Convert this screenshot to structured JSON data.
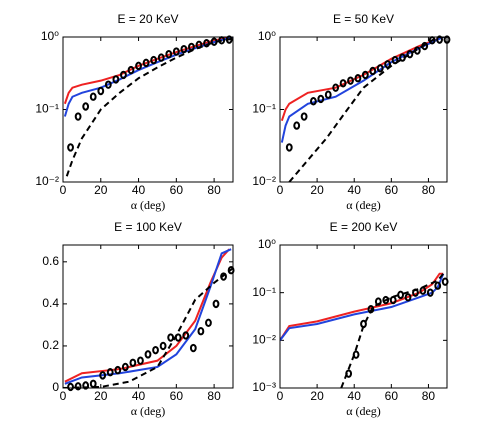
{
  "chart_data": [
    {
      "type": "line",
      "title": "E = 20 KeV",
      "xlabel": "α (deg)",
      "log_y": true,
      "xlim": [
        0,
        90
      ],
      "xticks": [
        0,
        20,
        40,
        60,
        80
      ],
      "ylim": [
        0.01,
        1
      ],
      "yticks": [
        {
          "value": 0.01,
          "label": "10⁻²"
        },
        {
          "value": 0.1,
          "label": "10⁻¹"
        },
        {
          "value": 1,
          "label": "10⁰"
        }
      ],
      "series": [
        {
          "color": "#ee2222",
          "line_style": "solid",
          "x": [
            1,
            3,
            5,
            10,
            20,
            30,
            40,
            50,
            60,
            70,
            80,
            90
          ],
          "values": [
            0.12,
            0.17,
            0.2,
            0.22,
            0.25,
            0.3,
            0.4,
            0.5,
            0.62,
            0.75,
            0.9,
            1
          ]
        },
        {
          "color": "#2244dd",
          "line_style": "solid",
          "x": [
            1,
            3,
            5,
            10,
            20,
            30,
            40,
            50,
            60,
            70,
            80,
            90
          ],
          "values": [
            0.08,
            0.12,
            0.15,
            0.17,
            0.2,
            0.26,
            0.35,
            0.45,
            0.57,
            0.7,
            0.85,
            1
          ]
        },
        {
          "color": "#000000",
          "line_style": "dashed",
          "x": [
            2,
            5,
            10,
            20,
            30,
            40,
            50,
            60,
            70,
            80,
            90
          ],
          "values": [
            0.012,
            0.02,
            0.04,
            0.1,
            0.17,
            0.27,
            0.38,
            0.52,
            0.68,
            0.85,
            0.95
          ]
        },
        {
          "color": "#000000",
          "line_style": "none",
          "marker": "circle",
          "x": [
            4,
            8,
            12,
            16,
            20,
            24,
            28,
            32,
            36,
            40,
            44,
            48,
            52,
            56,
            60,
            64,
            68,
            72,
            76,
            80,
            84,
            88
          ],
          "values": [
            0.03,
            0.08,
            0.11,
            0.15,
            0.18,
            0.22,
            0.26,
            0.3,
            0.35,
            0.4,
            0.44,
            0.48,
            0.52,
            0.58,
            0.63,
            0.68,
            0.73,
            0.78,
            0.82,
            0.86,
            0.9,
            0.92
          ]
        }
      ]
    },
    {
      "type": "line",
      "title": "E = 50 KeV",
      "xlabel": "α (deg)",
      "log_y": true,
      "xlim": [
        0,
        90
      ],
      "xticks": [
        0,
        20,
        40,
        60,
        80
      ],
      "ylim": [
        0.01,
        1
      ],
      "yticks": [
        {
          "value": 0.01,
          "label": "10⁻²"
        },
        {
          "value": 0.1,
          "label": "10⁻¹"
        },
        {
          "value": 1,
          "label": "10⁰"
        }
      ],
      "series": [
        {
          "color": "#ee2222",
          "line_style": "solid",
          "x": [
            1,
            3,
            5,
            15,
            30,
            45,
            60,
            75,
            88,
            90
          ],
          "values": [
            0.07,
            0.1,
            0.12,
            0.17,
            0.2,
            0.3,
            0.5,
            0.75,
            1,
            1
          ]
        },
        {
          "color": "#2244dd",
          "line_style": "solid",
          "x": [
            1,
            3,
            5,
            15,
            30,
            45,
            60,
            75,
            88,
            90
          ],
          "values": [
            0.035,
            0.06,
            0.08,
            0.12,
            0.15,
            0.25,
            0.45,
            0.7,
            1,
            1
          ]
        },
        {
          "color": "#000000",
          "line_style": "dashed",
          "x": [
            5,
            15,
            25,
            35,
            45,
            60,
            75,
            85,
            90
          ],
          "values": [
            0.01,
            0.02,
            0.04,
            0.09,
            0.2,
            0.4,
            0.7,
            1,
            1
          ]
        },
        {
          "color": "#000000",
          "line_style": "none",
          "marker": "circle",
          "x": [
            5,
            9,
            13,
            18,
            22,
            26,
            30,
            34,
            38,
            42,
            46,
            50,
            54,
            58,
            62,
            66,
            70,
            74,
            78,
            82,
            86,
            90
          ],
          "values": [
            0.03,
            0.06,
            0.08,
            0.13,
            0.14,
            0.16,
            0.2,
            0.23,
            0.25,
            0.27,
            0.3,
            0.34,
            0.37,
            0.42,
            0.48,
            0.52,
            0.58,
            0.65,
            0.75,
            0.9,
            0.92,
            0.92
          ]
        }
      ]
    },
    {
      "type": "line",
      "title": "E = 100 KeV",
      "xlabel": "α (deg)",
      "log_y": false,
      "xlim": [
        0,
        90
      ],
      "xticks": [
        0,
        20,
        40,
        60,
        80
      ],
      "ylim": [
        0,
        0.68
      ],
      "yticks": [
        0,
        0.2,
        0.4,
        0.6
      ],
      "series": [
        {
          "color": "#ee2222",
          "line_style": "solid",
          "x": [
            1,
            10,
            30,
            50,
            60,
            70,
            78,
            84,
            88
          ],
          "values": [
            0.03,
            0.07,
            0.09,
            0.13,
            0.2,
            0.32,
            0.5,
            0.62,
            0.66
          ]
        },
        {
          "color": "#2244dd",
          "line_style": "solid",
          "x": [
            1,
            10,
            30,
            50,
            60,
            70,
            78,
            84,
            89
          ],
          "values": [
            0.02,
            0.05,
            0.07,
            0.1,
            0.16,
            0.28,
            0.48,
            0.64,
            0.66
          ]
        },
        {
          "color": "#000000",
          "line_style": "dashed",
          "x": [
            0,
            20,
            35,
            50,
            60,
            70,
            80,
            90
          ],
          "values": [
            0,
            0.005,
            0.03,
            0.1,
            0.25,
            0.42,
            0.5,
            0.57
          ]
        },
        {
          "color": "#000000",
          "line_style": "none",
          "marker": "circle",
          "x": [
            4,
            8,
            12,
            16,
            21,
            25,
            29,
            33,
            37,
            41,
            45,
            49,
            53,
            57,
            61,
            65,
            69,
            73,
            77,
            81,
            85,
            89
          ],
          "values": [
            0.005,
            0.008,
            0.012,
            0.02,
            0.06,
            0.075,
            0.085,
            0.1,
            0.12,
            0.13,
            0.16,
            0.18,
            0.2,
            0.24,
            0.24,
            0.25,
            0.19,
            0.27,
            0.31,
            0.4,
            0.53,
            0.56
          ]
        }
      ]
    },
    {
      "type": "line",
      "title": "E = 200 KeV",
      "xlabel": "α (deg)",
      "log_y": true,
      "xlim": [
        0,
        90
      ],
      "xticks": [
        0,
        20,
        40,
        60,
        80
      ],
      "ylim": [
        0.001,
        1
      ],
      "yticks": [
        {
          "value": 0.001,
          "label": "10⁻³"
        },
        {
          "value": 0.01,
          "label": "10⁻²"
        },
        {
          "value": 0.1,
          "label": "10⁻¹"
        },
        {
          "value": 1,
          "label": "10⁰"
        }
      ],
      "series": [
        {
          "color": "#ee2222",
          "line_style": "solid",
          "x": [
            0,
            5,
            20,
            40,
            60,
            75,
            82,
            86,
            88
          ],
          "values": [
            0.01,
            0.02,
            0.025,
            0.04,
            0.06,
            0.1,
            0.15,
            0.25,
            0.25
          ]
        },
        {
          "color": "#2244dd",
          "line_style": "solid",
          "x": [
            0,
            5,
            20,
            40,
            60,
            75,
            82,
            85,
            88
          ],
          "values": [
            0.01,
            0.018,
            0.022,
            0.035,
            0.05,
            0.08,
            0.1,
            0.13,
            0.25
          ]
        },
        {
          "color": "#000000",
          "line_style": "dashed",
          "x": [
            33,
            40,
            45,
            50,
            60,
            75,
            85,
            88
          ],
          "values": [
            0.001,
            0.005,
            0.02,
            0.05,
            0.08,
            0.12,
            0.18,
            0.25
          ]
        },
        {
          "color": "#000000",
          "line_style": "none",
          "marker": "circle",
          "x": [
            37,
            41,
            45,
            49,
            53,
            57,
            61,
            65,
            69,
            73,
            77,
            81,
            85,
            89
          ],
          "values": [
            0.002,
            0.005,
            0.022,
            0.045,
            0.065,
            0.07,
            0.07,
            0.09,
            0.08,
            0.1,
            0.11,
            0.1,
            0.14,
            0.17
          ]
        }
      ]
    }
  ]
}
